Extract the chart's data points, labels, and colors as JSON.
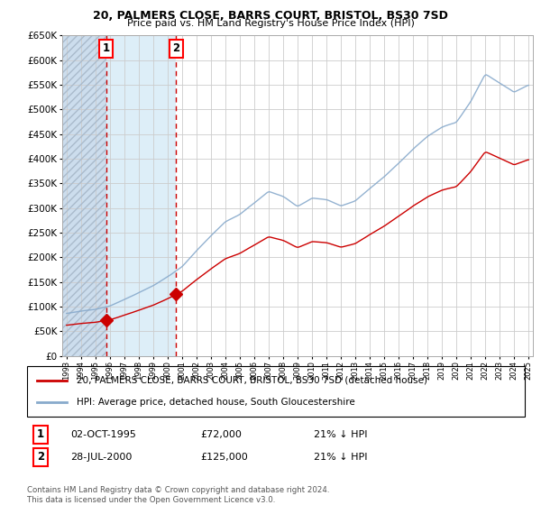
{
  "title": "20, PALMERS CLOSE, BARRS COURT, BRISTOL, BS30 7SD",
  "subtitle": "Price paid vs. HM Land Registry's House Price Index (HPI)",
  "ytick_values": [
    0,
    50000,
    100000,
    150000,
    200000,
    250000,
    300000,
    350000,
    400000,
    450000,
    500000,
    550000,
    600000,
    650000
  ],
  "ytick_labels": [
    "£0",
    "£50K",
    "£100K",
    "£150K",
    "£200K",
    "£250K",
    "£300K",
    "£350K",
    "£400K",
    "£450K",
    "£500K",
    "£550K",
    "£600K",
    "£650K"
  ],
  "sale1_year": 1995.75,
  "sale1_price": 72000,
  "sale2_year": 2000.583,
  "sale2_price": 125000,
  "sale1_label": "1",
  "sale2_label": "2",
  "sale1_date_str": "02-OCT-1995",
  "sale1_price_str": "£72,000",
  "sale1_hpi_str": "21% ↓ HPI",
  "sale2_date_str": "28-JUL-2000",
  "sale2_price_str": "£125,000",
  "sale2_hpi_str": "21% ↓ HPI",
  "legend_house": "20, PALMERS CLOSE, BARRS COURT, BRISTOL, BS30 7SD (detached house)",
  "legend_hpi": "HPI: Average price, detached house, South Gloucestershire",
  "footer": "Contains HM Land Registry data © Crown copyright and database right 2024.\nThis data is licensed under the Open Government Licence v3.0.",
  "house_color": "#cc0000",
  "hpi_color": "#88aacc",
  "shade_between_color": "#ddeeff",
  "shade_left_color": "#ccdded",
  "xlim_left": 1992.7,
  "xlim_right": 2025.3,
  "ylim_bottom": 0,
  "ylim_top": 650000
}
